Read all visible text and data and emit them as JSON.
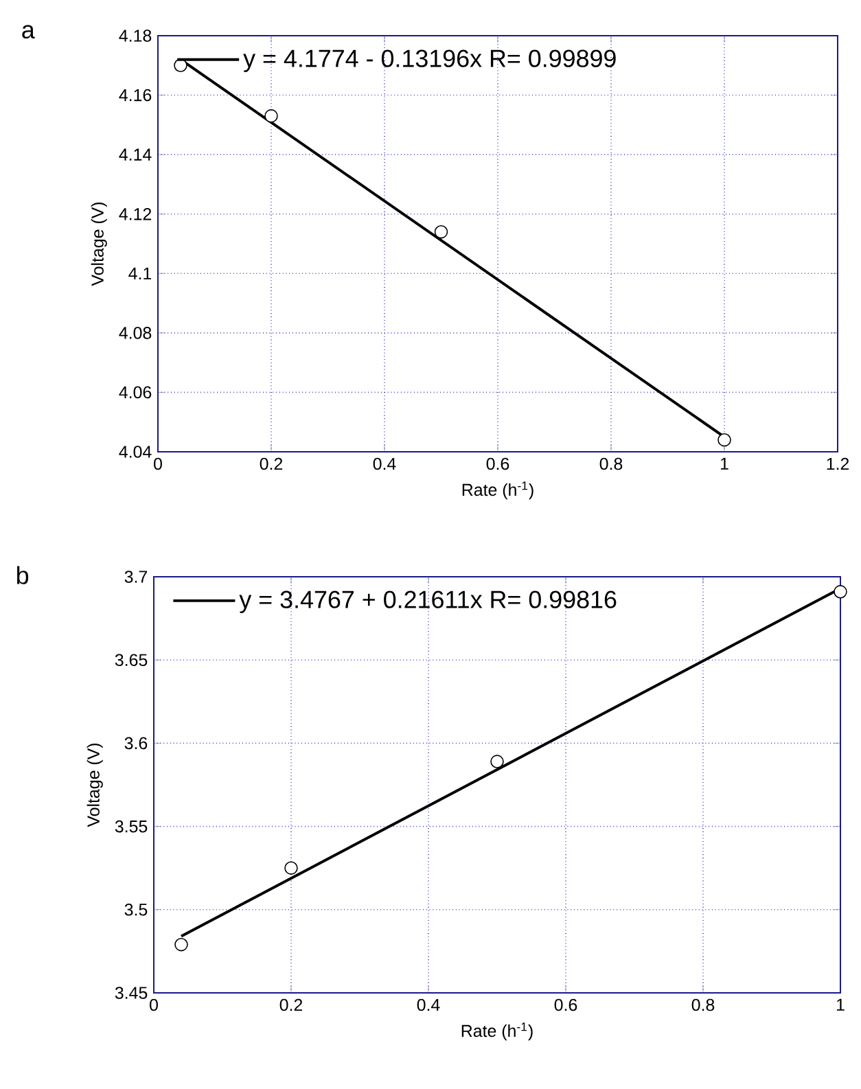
{
  "chart_data": [
    {
      "type": "scatter",
      "annotations": [
        "a"
      ],
      "xlabel": "Rate (h$^{-1}$)",
      "ylabel": "Voltage (V)",
      "xlim": [
        0,
        1.2
      ],
      "ylim": [
        4.04,
        4.18
      ],
      "xticks": [
        0,
        0.2,
        0.4,
        0.6,
        0.8,
        1,
        1.2
      ],
      "yticks": [
        4.04,
        4.06,
        4.08,
        4.1,
        4.12,
        4.14,
        4.16,
        4.18
      ],
      "grid": true,
      "legend": "top left",
      "series": [
        {
          "type": "scatter",
          "x": [
            0.04,
            0.2,
            0.5,
            1
          ],
          "values": [
            4.17,
            4.153,
            4.114,
            4.044
          ],
          "color": "#000000",
          "marker": "circle"
        },
        {
          "type": "line",
          "name": "y = 4.1774 - 0.13196x   R= 0.99899",
          "x": [
            0.04,
            1
          ],
          "values": [
            4.172,
            4.045
          ],
          "color": "#000000",
          "marker": "none"
        }
      ]
    },
    {
      "type": "scatter",
      "annotations": [
        "b"
      ],
      "xlabel": "Rate (h$^{-1}$)",
      "ylabel": "Voltage (V)",
      "xlim": [
        0,
        1
      ],
      "ylim": [
        3.45,
        3.7
      ],
      "xticks": [
        0,
        0.2,
        0.4,
        0.6,
        0.8,
        1
      ],
      "yticks": [
        3.45,
        3.5,
        3.55,
        3.6,
        3.65,
        3.7
      ],
      "grid": true,
      "legend": "top left",
      "series": [
        {
          "type": "scatter",
          "x": [
            0.04,
            0.2,
            0.5,
            1
          ],
          "values": [
            3.479,
            3.525,
            3.589,
            3.691
          ],
          "color": "#000000",
          "marker": "circle"
        },
        {
          "type": "line",
          "name": "y = 3.4767 + 0.21611x   R= 0.99816",
          "x": [
            0.04,
            1
          ],
          "values": [
            3.484,
            3.693
          ],
          "color": "#000000",
          "marker": "none"
        }
      ]
    }
  ]
}
